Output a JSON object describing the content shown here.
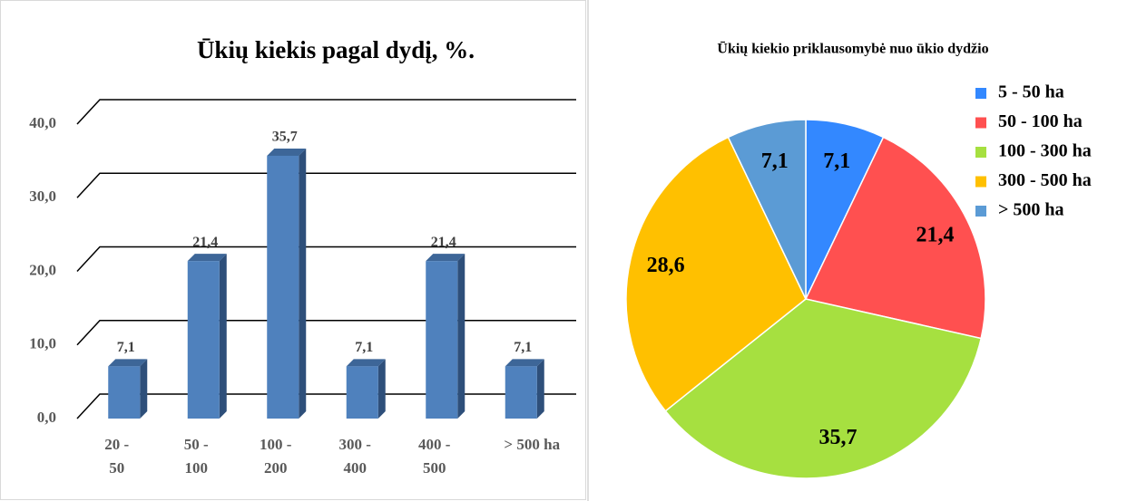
{
  "chart_data": [
    {
      "type": "bar",
      "title": "Ūkių kiekis pagal dydį, %.",
      "categories": [
        "20 - 50",
        "50 - 100",
        "100 - 200",
        "300 - 400",
        "400 - 500",
        "> 500 ha"
      ],
      "values": [
        7.1,
        21.4,
        35.7,
        7.1,
        21.4,
        7.1
      ],
      "value_labels": [
        "7,1",
        "21,4",
        "35,7",
        "7,1",
        "21,4",
        "7,1"
      ],
      "color": "#4f81bd",
      "ylim": [
        0,
        40
      ],
      "yticks": [
        {
          "value": 0,
          "label": "0,0"
        },
        {
          "value": 10,
          "label": "10,0"
        },
        {
          "value": 20,
          "label": "20,0"
        },
        {
          "value": 30,
          "label": "30,0"
        },
        {
          "value": 40,
          "label": "40,0"
        }
      ],
      "grid": true
    },
    {
      "type": "pie",
      "title": "Ūkių kiekio priklausomybė nuo ūkio dydžio",
      "categories": [
        "5 - 50 ha",
        "50 - 100 ha",
        "100 - 300 ha",
        "300 - 500 ha",
        "> 500 ha"
      ],
      "values": [
        7.1,
        21.4,
        35.7,
        28.6,
        7.1
      ],
      "value_labels": [
        "7,1",
        "21,4",
        "35,7",
        "28,6",
        "7,1"
      ],
      "colors": [
        "#3388ff",
        "#ff5050",
        "#a6e040",
        "#ffc000",
        "#5b9bd5"
      ],
      "legend": "right"
    }
  ]
}
